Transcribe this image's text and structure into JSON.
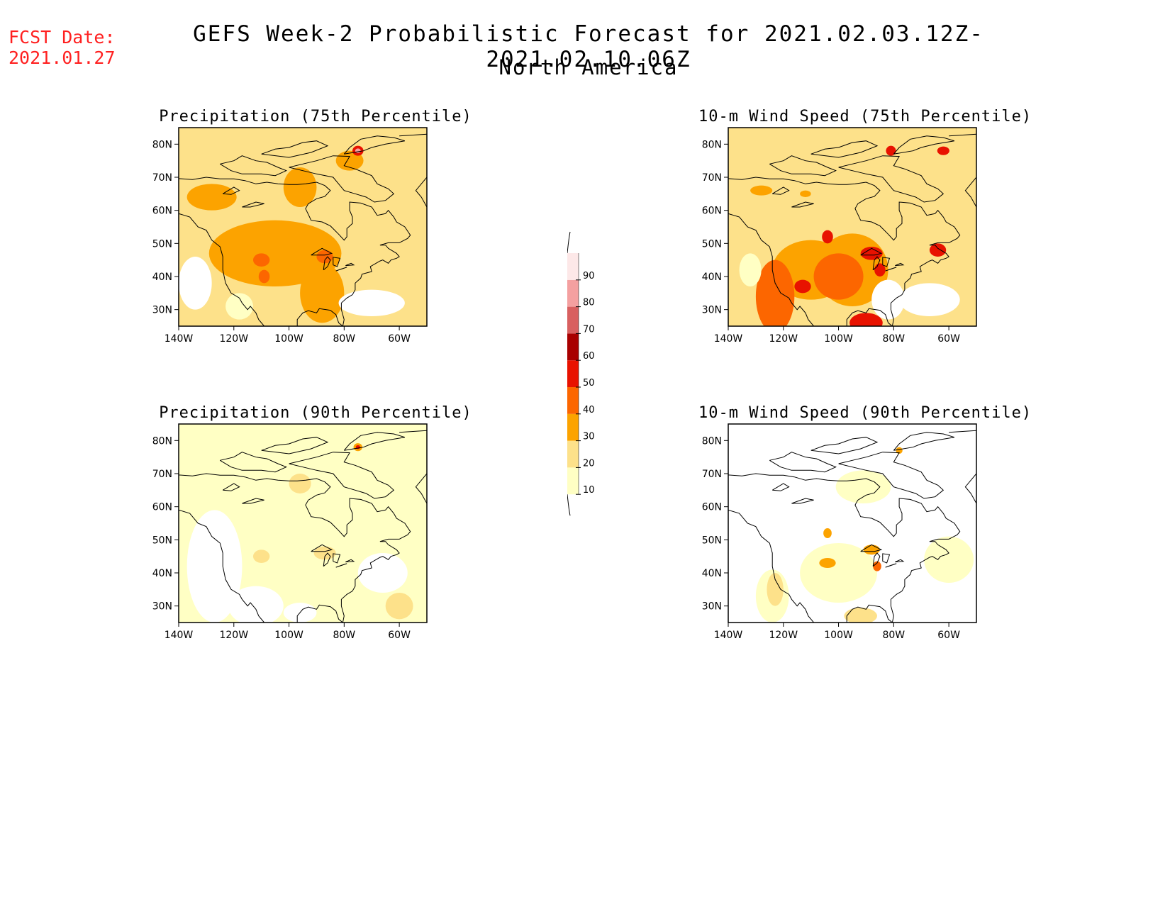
{
  "header": {
    "fcst_label": "FCST Date:",
    "fcst_date": "2021.01.27",
    "title": "GEFS Week-2 Probabilistic Forecast for 2021.02.03.12Z-2021.02.10.06Z",
    "subtitle": "North America"
  },
  "map_axes": {
    "lat_labels": [
      "80N",
      "70N",
      "60N",
      "50N",
      "40N",
      "30N"
    ],
    "lat_values": [
      80,
      70,
      60,
      50,
      40,
      30
    ],
    "lon_labels": [
      "140W",
      "120W",
      "100W",
      "80W",
      "60W"
    ],
    "lon_values": [
      -140,
      -120,
      -100,
      -80,
      -60
    ],
    "lat_range": [
      25,
      85
    ],
    "lon_range": [
      -140,
      -50
    ]
  },
  "panels": [
    {
      "id": "precip75",
      "title": "Precipitation (75th Percentile)",
      "base_level": 2,
      "hotspots": [
        {
          "lon": -105,
          "lat": 47,
          "rx": 24,
          "ry": 10,
          "level": 3
        },
        {
          "lon": -88,
          "lat": 35,
          "rx": 8,
          "ry": 9,
          "level": 3
        },
        {
          "lon": -128,
          "lat": 64,
          "rx": 9,
          "ry": 4,
          "level": 3
        },
        {
          "lon": -96,
          "lat": 67,
          "rx": 6,
          "ry": 6,
          "level": 3
        },
        {
          "lon": -78,
          "lat": 75,
          "rx": 5,
          "ry": 3,
          "level": 3
        },
        {
          "lon": -110,
          "lat": 45,
          "rx": 3,
          "ry": 2,
          "level": 4
        },
        {
          "lon": -87,
          "lat": 46,
          "rx": 3,
          "ry": 2,
          "level": 4
        },
        {
          "lon": -109,
          "lat": 40,
          "rx": 2,
          "ry": 2,
          "level": 4
        },
        {
          "lon": -75,
          "lat": 78,
          "rx": 2,
          "ry": 1.5,
          "level": 5
        },
        {
          "lon": -75,
          "lat": 78,
          "rx": 1,
          "ry": 0.7,
          "level": 8
        },
        {
          "lon": -134,
          "lat": 38,
          "rx": 6,
          "ry": 8,
          "level": 0
        },
        {
          "lon": -70,
          "lat": 32,
          "rx": 12,
          "ry": 4,
          "level": 0
        },
        {
          "lon": -118,
          "lat": 31,
          "rx": 5,
          "ry": 4,
          "level": 1
        }
      ]
    },
    {
      "id": "wind75",
      "title": "10-m Wind Speed (75th Percentile)",
      "base_level": 2,
      "hotspots": [
        {
          "lon": -110,
          "lat": 42,
          "rx": 14,
          "ry": 9,
          "level": 3
        },
        {
          "lon": -95,
          "lat": 42,
          "rx": 13,
          "ry": 11,
          "level": 3
        },
        {
          "lon": -123,
          "lat": 34,
          "rx": 7,
          "ry": 11,
          "level": 4
        },
        {
          "lon": -100,
          "lat": 40,
          "rx": 9,
          "ry": 7,
          "level": 4
        },
        {
          "lon": -90,
          "lat": 26,
          "rx": 6,
          "ry": 3,
          "level": 5
        },
        {
          "lon": -88,
          "lat": 47,
          "rx": 4,
          "ry": 2,
          "level": 5
        },
        {
          "lon": -104,
          "lat": 52,
          "rx": 2,
          "ry": 2,
          "level": 5
        },
        {
          "lon": -64,
          "lat": 48,
          "rx": 3,
          "ry": 2,
          "level": 5
        },
        {
          "lon": -113,
          "lat": 37,
          "rx": 3,
          "ry": 2,
          "level": 5
        },
        {
          "lon": -85,
          "lat": 42,
          "rx": 2,
          "ry": 2,
          "level": 5
        },
        {
          "lon": -81,
          "lat": 78,
          "rx": 1.8,
          "ry": 1.5,
          "level": 5
        },
        {
          "lon": -62,
          "lat": 78,
          "rx": 2.2,
          "ry": 1.3,
          "level": 5
        },
        {
          "lon": -128,
          "lat": 66,
          "rx": 4,
          "ry": 1.5,
          "level": 3
        },
        {
          "lon": -112,
          "lat": 65,
          "rx": 2,
          "ry": 1,
          "level": 3
        },
        {
          "lon": -82,
          "lat": 33,
          "rx": 6,
          "ry": 6,
          "level": 0
        },
        {
          "lon": -67,
          "lat": 33,
          "rx": 11,
          "ry": 5,
          "level": 0
        },
        {
          "lon": -132,
          "lat": 42,
          "rx": 4,
          "ry": 5,
          "level": 1
        }
      ]
    },
    {
      "id": "precip90",
      "title": "Precipitation (90th Percentile)",
      "base_level": 1,
      "hotspots": [
        {
          "lon": -127,
          "lat": 42,
          "rx": 10,
          "ry": 17,
          "level": 0
        },
        {
          "lon": -112,
          "lat": 30,
          "rx": 10,
          "ry": 6,
          "level": 0
        },
        {
          "lon": -96,
          "lat": 28,
          "rx": 6,
          "ry": 3,
          "level": 0
        },
        {
          "lon": -66,
          "lat": 40,
          "rx": 9,
          "ry": 6,
          "level": 0
        },
        {
          "lon": -110,
          "lat": 45,
          "rx": 3,
          "ry": 2,
          "level": 2
        },
        {
          "lon": -87,
          "lat": 46,
          "rx": 4,
          "ry": 2,
          "level": 2
        },
        {
          "lon": -96,
          "lat": 67,
          "rx": 4,
          "ry": 3,
          "level": 2
        },
        {
          "lon": -60,
          "lat": 30,
          "rx": 5,
          "ry": 4,
          "level": 2
        },
        {
          "lon": -75,
          "lat": 78,
          "rx": 1.6,
          "ry": 1.2,
          "level": 3
        },
        {
          "lon": -75,
          "lat": 78,
          "rx": 0.8,
          "ry": 0.6,
          "level": 5
        }
      ]
    },
    {
      "id": "wind90",
      "title": "10-m Wind Speed (90th Percentile)",
      "base_level": 0,
      "hotspots": [
        {
          "lon": -100,
          "lat": 40,
          "rx": 14,
          "ry": 9,
          "level": 1
        },
        {
          "lon": -124,
          "lat": 33,
          "rx": 6,
          "ry": 8,
          "level": 1
        },
        {
          "lon": -91,
          "lat": 66,
          "rx": 10,
          "ry": 5,
          "level": 1
        },
        {
          "lon": -60,
          "lat": 44,
          "rx": 9,
          "ry": 7,
          "level": 1
        },
        {
          "lon": -92,
          "lat": 27,
          "rx": 6,
          "ry": 2.5,
          "level": 2
        },
        {
          "lon": -123,
          "lat": 35,
          "rx": 3,
          "ry": 5,
          "level": 2
        },
        {
          "lon": -104,
          "lat": 43,
          "rx": 3,
          "ry": 1.5,
          "level": 3
        },
        {
          "lon": -88,
          "lat": 47,
          "rx": 3,
          "ry": 1.5,
          "level": 3
        },
        {
          "lon": -104,
          "lat": 52,
          "rx": 1.5,
          "ry": 1.5,
          "level": 3
        },
        {
          "lon": -86,
          "lat": 42,
          "rx": 1.5,
          "ry": 1.5,
          "level": 4
        },
        {
          "lon": -78,
          "lat": 77,
          "rx": 1.2,
          "ry": 1,
          "level": 3
        }
      ]
    }
  ],
  "colorbar": {
    "labels": [
      "10",
      "20",
      "30",
      "40",
      "50",
      "60",
      "70",
      "80",
      "90"
    ],
    "colors": [
      "#ffffc4",
      "#fde18a",
      "#fca300",
      "#fc6600",
      "#e81200",
      "#a80000",
      "#d86060",
      "#f4a0a0",
      "#fde8e8"
    ]
  }
}
